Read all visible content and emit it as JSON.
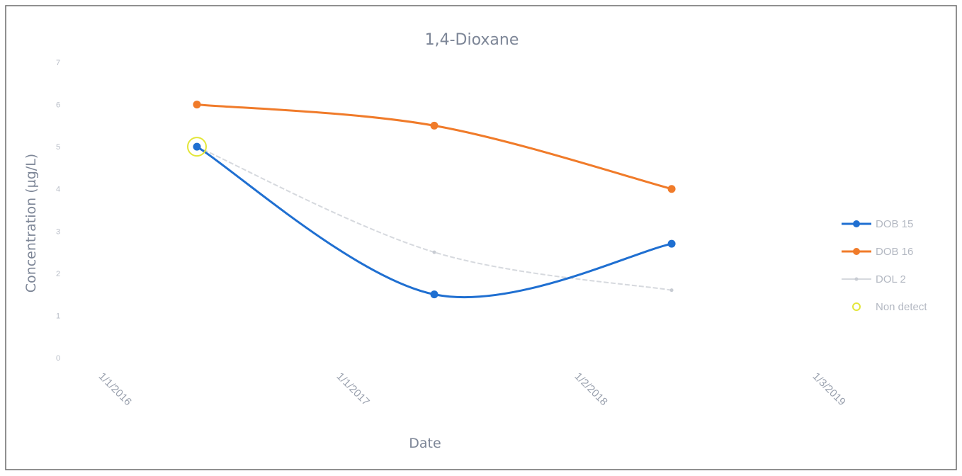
{
  "chart_data": {
    "type": "line",
    "title": "1,4-Dioxane",
    "xlabel": "Date",
    "ylabel": "Concentration (µg/L)",
    "xlim": [
      "2015-12-01",
      "2019-04-15"
    ],
    "ylim": [
      0,
      7
    ],
    "y_ticks": [
      "0",
      "1",
      "2",
      "3",
      "4",
      "5",
      "6",
      "7"
    ],
    "x_ticks": [
      {
        "label": "1/1/2016",
        "date": "2016-01-01"
      },
      {
        "label": "1/1/2017",
        "date": "2017-01-01"
      },
      {
        "label": "1/2/2018",
        "date": "2018-01-02"
      },
      {
        "label": "1/3/2019",
        "date": "2019-01-03"
      }
    ],
    "grid": false,
    "legend_position": "right",
    "series": [
      {
        "name": "DOB 15",
        "color": "#1f6fd1",
        "marker": "dot",
        "values": [
          {
            "x": "2016-06-01",
            "y": 5.0
          },
          {
            "x": "2017-06-01",
            "y": 1.5
          },
          {
            "x": "2018-06-01",
            "y": 2.7
          }
        ]
      },
      {
        "name": "DOB 16",
        "color": "#f07b2a",
        "marker": "dot",
        "values": [
          {
            "x": "2016-06-01",
            "y": 6.0
          },
          {
            "x": "2017-06-01",
            "y": 5.5
          },
          {
            "x": "2018-06-01",
            "y": 4.0
          }
        ]
      },
      {
        "name": "DOL 2",
        "color": "#d6d9de",
        "marker": "text-mark",
        "values": [
          {
            "x": "2016-06-01",
            "y": 5.0
          },
          {
            "x": "2017-06-01",
            "y": 2.5
          },
          {
            "x": "2018-06-01",
            "y": 1.6
          }
        ]
      }
    ],
    "non_detect": {
      "name": "Non detect",
      "color": "#e3e63a",
      "points": [
        {
          "x": "2016-06-01",
          "y": 5.0
        }
      ]
    }
  }
}
